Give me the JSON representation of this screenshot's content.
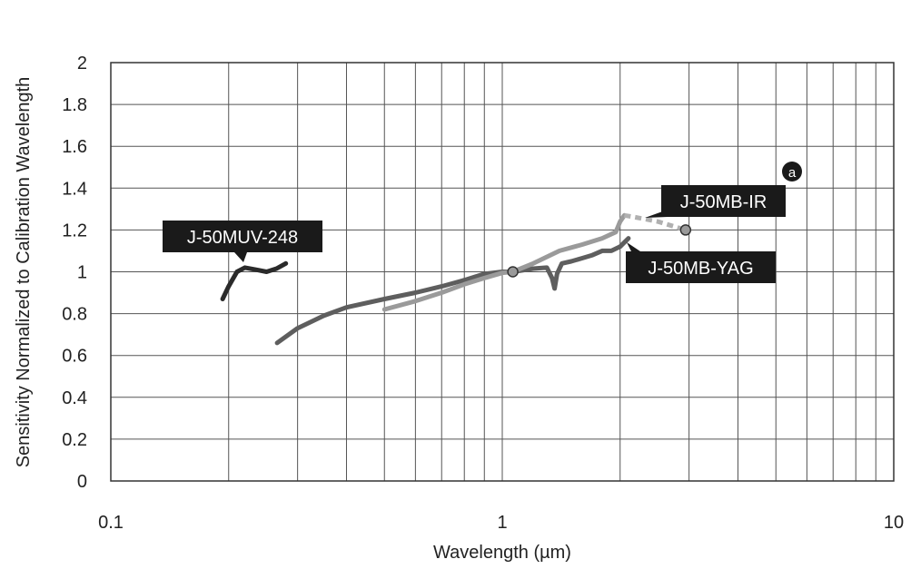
{
  "chart_data": {
    "type": "line",
    "xscale": "log",
    "xlim": [
      0.1,
      10
    ],
    "ylim": [
      0,
      2
    ],
    "grid": true,
    "xlabel": "Wavelength (µm)",
    "ylabel": "Sensitivity Normalized to Calibration Wavelength",
    "x_ticks": [
      "0.1",
      "1",
      "10"
    ],
    "y_ticks": [
      "0",
      "0.2",
      "0.4",
      "0.6",
      "0.8",
      "1",
      "1.2",
      "1.4",
      "1.6",
      "1.8",
      "2"
    ],
    "series": [
      {
        "name": "J-50MUV-248",
        "color": "#2a2a2a",
        "x": [
          0.193,
          0.2,
          0.21,
          0.22,
          0.235,
          0.25,
          0.265,
          0.28
        ],
        "y": [
          0.87,
          0.93,
          1.0,
          1.02,
          1.01,
          1.0,
          1.015,
          1.04
        ]
      },
      {
        "name": "J-50MB-YAG",
        "color": "#5e5e5e",
        "x": [
          0.266,
          0.3,
          0.35,
          0.4,
          0.5,
          0.6,
          0.7,
          0.8,
          0.9,
          1.0,
          1.064,
          1.2,
          1.3,
          1.34,
          1.36,
          1.38,
          1.42,
          1.5,
          1.6,
          1.7,
          1.8,
          1.9,
          2.0,
          2.1
        ],
        "y": [
          0.66,
          0.73,
          0.79,
          0.83,
          0.87,
          0.9,
          0.93,
          0.96,
          0.99,
          1.0,
          1.0,
          1.015,
          1.02,
          0.97,
          0.92,
          0.99,
          1.04,
          1.05,
          1.065,
          1.08,
          1.1,
          1.1,
          1.12,
          1.16
        ]
      },
      {
        "name": "J-50MB-IR",
        "color": "#9a9a9a",
        "x": [
          0.5,
          0.6,
          0.7,
          0.8,
          0.9,
          1.0,
          1.064,
          1.2,
          1.4,
          1.6,
          1.8,
          1.95,
          2.0,
          2.05
        ],
        "y": [
          0.82,
          0.86,
          0.9,
          0.94,
          0.97,
          0.995,
          1.0,
          1.04,
          1.1,
          1.13,
          1.16,
          1.19,
          1.24,
          1.27
        ]
      }
    ],
    "extensions": [
      {
        "series": "J-50MB-IR",
        "style": "dashed",
        "color": "#b0b0b0",
        "x": [
          2.05,
          2.2,
          2.5,
          2.94
        ],
        "y": [
          1.27,
          1.26,
          1.24,
          1.2
        ]
      }
    ],
    "markers": [
      {
        "x": 1.064,
        "y": 1.0
      },
      {
        "x": 2.94,
        "y": 1.2
      }
    ],
    "callouts": [
      {
        "text": "J-50MUV-248",
        "series": "J-50MUV-248"
      },
      {
        "text": "J-50MB-IR",
        "series": "J-50MB-IR"
      },
      {
        "text": "J-50MB-YAG",
        "series": "J-50MB-YAG"
      }
    ],
    "badge": "a"
  }
}
